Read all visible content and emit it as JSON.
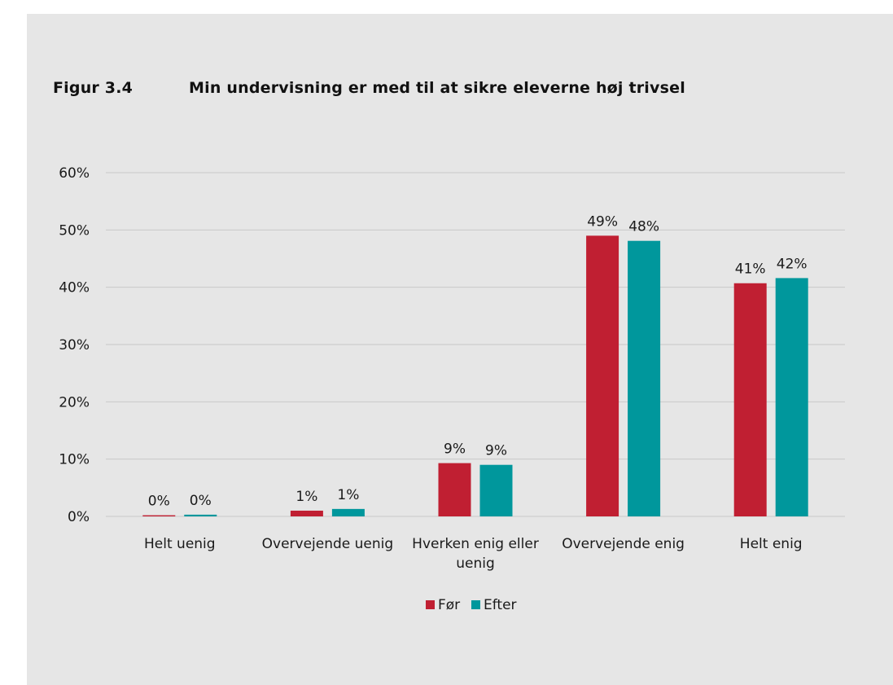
{
  "figure": {
    "label": "Figur 3.4",
    "title": "Min undervisning er med til at sikre eleverne høj trivsel"
  },
  "colors": {
    "background": "#e6e6e6",
    "gridline": "#c8c8c8",
    "series_for": "#c01f32",
    "series_efter": "#00979c"
  },
  "chart_data": {
    "type": "bar",
    "title": "Min undervisning er med til at sikre eleverne høj trivsel",
    "xlabel": "",
    "ylabel": "",
    "ylim": [
      0,
      60
    ],
    "y_ticks": [
      "0%",
      "10%",
      "20%",
      "30%",
      "40%",
      "50%",
      "60%"
    ],
    "grid": true,
    "legend_position": "bottom",
    "categories": [
      [
        "Helt uenig"
      ],
      [
        "Overvejende uenig"
      ],
      [
        "Hverken enig eller",
        "uenig"
      ],
      [
        "Overvejende enig"
      ],
      [
        "Helt enig"
      ]
    ],
    "series": [
      {
        "name": "Før",
        "values": [
          0.2,
          1.0,
          9.3,
          49.0,
          40.7
        ],
        "labels": [
          "0%",
          "1%",
          "9%",
          "49%",
          "41%"
        ]
      },
      {
        "name": "Efter",
        "values": [
          0.3,
          1.3,
          9.0,
          48.1,
          41.6
        ],
        "labels": [
          "0%",
          "1%",
          "9%",
          "48%",
          "42%"
        ]
      }
    ]
  }
}
